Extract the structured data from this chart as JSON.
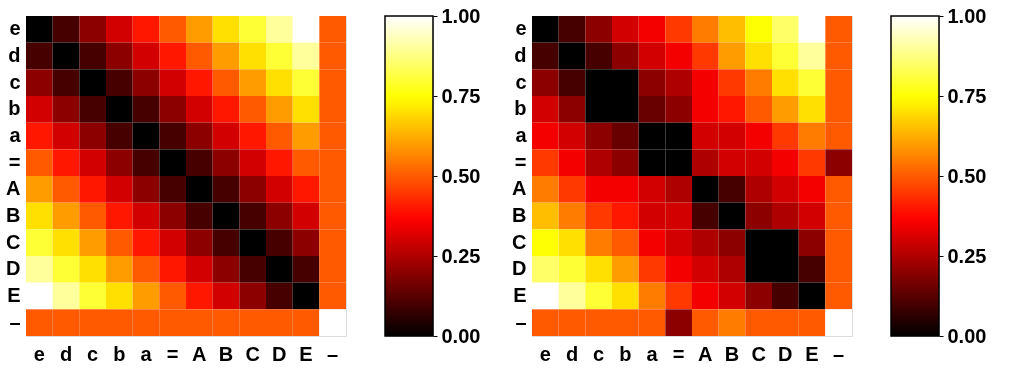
{
  "chart_data": [
    {
      "type": "heatmap",
      "categories": [
        "e",
        "d",
        "c",
        "b",
        "a",
        "=",
        "A",
        "B",
        "C",
        "D",
        "E",
        "–"
      ],
      "y_categories": [
        "e",
        "d",
        "c",
        "b",
        "a",
        "=",
        "A",
        "B",
        "C",
        "D",
        "E",
        "–"
      ],
      "cells": [
        [
          0,
          0.1,
          0.2,
          0.3,
          0.4,
          0.5,
          0.6,
          0.7,
          0.8,
          0.9,
          1.0,
          0.5
        ],
        [
          0.1,
          0,
          0.1,
          0.2,
          0.3,
          0.4,
          0.5,
          0.6,
          0.7,
          0.8,
          0.9,
          0.5
        ],
        [
          0.2,
          0.1,
          0,
          0.1,
          0.2,
          0.3,
          0.4,
          0.5,
          0.6,
          0.7,
          0.8,
          0.5
        ],
        [
          0.3,
          0.2,
          0.1,
          0,
          0.1,
          0.2,
          0.3,
          0.4,
          0.5,
          0.6,
          0.7,
          0.5
        ],
        [
          0.4,
          0.3,
          0.2,
          0.1,
          0,
          0.1,
          0.2,
          0.3,
          0.4,
          0.5,
          0.6,
          0.5
        ],
        [
          0.5,
          0.4,
          0.3,
          0.2,
          0.1,
          0,
          0.1,
          0.2,
          0.3,
          0.4,
          0.5,
          0.5
        ],
        [
          0.6,
          0.5,
          0.4,
          0.3,
          0.2,
          0.1,
          0,
          0.1,
          0.2,
          0.3,
          0.4,
          0.5
        ],
        [
          0.7,
          0.6,
          0.5,
          0.4,
          0.3,
          0.2,
          0.1,
          0,
          0.1,
          0.2,
          0.3,
          0.5
        ],
        [
          0.8,
          0.7,
          0.6,
          0.5,
          0.4,
          0.3,
          0.2,
          0.1,
          0,
          0.1,
          0.2,
          0.5
        ],
        [
          0.9,
          0.8,
          0.7,
          0.6,
          0.5,
          0.4,
          0.3,
          0.2,
          0.1,
          0,
          0.1,
          0.5
        ],
        [
          1.0,
          0.9,
          0.8,
          0.7,
          0.6,
          0.5,
          0.4,
          0.3,
          0.2,
          0.1,
          0,
          0.5
        ],
        [
          0.5,
          0.5,
          0.5,
          0.5,
          0.5,
          0.5,
          0.5,
          0.5,
          0.5,
          0.5,
          0.5,
          1.0
        ]
      ],
      "clim": [
        0,
        1
      ],
      "cticks": [
        {
          "value": 0,
          "label": "0.00"
        },
        {
          "value": 0.25,
          "label": "0.25"
        },
        {
          "value": 0.5,
          "label": "0.50"
        },
        {
          "value": 0.75,
          "label": "0.75"
        },
        {
          "value": 1,
          "label": "1.00"
        }
      ]
    },
    {
      "type": "heatmap",
      "categories": [
        "e",
        "d",
        "c",
        "b",
        "a",
        "=",
        "A",
        "B",
        "C",
        "D",
        "E",
        "–"
      ],
      "y_categories": [
        "e",
        "d",
        "c",
        "b",
        "a",
        "=",
        "A",
        "B",
        "C",
        "D",
        "E",
        "–"
      ],
      "cells": [
        [
          0,
          0.1,
          0.2,
          0.3,
          0.35,
          0.45,
          0.55,
          0.65,
          0.75,
          0.85,
          1.0,
          0.5
        ],
        [
          0.1,
          0,
          0.1,
          0.2,
          0.3,
          0.35,
          0.45,
          0.6,
          0.7,
          0.8,
          0.9,
          0.5
        ],
        [
          0.2,
          0.1,
          0,
          0,
          0.2,
          0.25,
          0.35,
          0.45,
          0.55,
          0.7,
          0.8,
          0.5
        ],
        [
          0.3,
          0.2,
          0,
          0,
          0.15,
          0.2,
          0.35,
          0.4,
          0.5,
          0.6,
          0.7,
          0.5
        ],
        [
          0.35,
          0.3,
          0.2,
          0.15,
          0,
          0,
          0.3,
          0.3,
          0.35,
          0.45,
          0.55,
          0.5
        ],
        [
          0.45,
          0.35,
          0.25,
          0.2,
          0,
          0,
          0.25,
          0.3,
          0.3,
          0.35,
          0.45,
          0.2
        ],
        [
          0.55,
          0.45,
          0.35,
          0.35,
          0.3,
          0.25,
          0,
          0.1,
          0.25,
          0.3,
          0.35,
          0.5
        ],
        [
          0.65,
          0.55,
          0.45,
          0.4,
          0.3,
          0.3,
          0.1,
          0,
          0.2,
          0.25,
          0.3,
          0.5
        ],
        [
          0.75,
          0.7,
          0.55,
          0.5,
          0.35,
          0.3,
          0.25,
          0.2,
          0,
          0,
          0.2,
          0.5
        ],
        [
          0.85,
          0.8,
          0.7,
          0.6,
          0.45,
          0.35,
          0.3,
          0.25,
          0,
          0,
          0.1,
          0.5
        ],
        [
          1.0,
          0.9,
          0.8,
          0.7,
          0.55,
          0.45,
          0.35,
          0.3,
          0.2,
          0.1,
          0,
          0.5
        ],
        [
          0.5,
          0.5,
          0.5,
          0.5,
          0.5,
          0.2,
          0.5,
          0.55,
          0.5,
          0.5,
          0.5,
          1.0
        ]
      ],
      "clim": [
        0,
        1
      ],
      "cticks": [
        {
          "value": 0,
          "label": "0.00"
        },
        {
          "value": 0.25,
          "label": "0.25"
        },
        {
          "value": 0.5,
          "label": "0.50"
        },
        {
          "value": 0.75,
          "label": "0.75"
        },
        {
          "value": 1,
          "label": "1.00"
        }
      ]
    }
  ]
}
